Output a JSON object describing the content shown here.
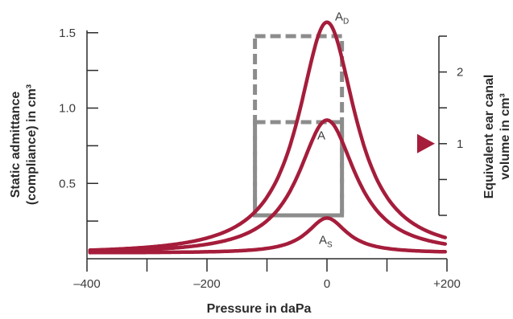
{
  "chart_data": {
    "type": "line",
    "xlabel": "Pressure in daPa",
    "ylabel_lines": [
      "Static admittance",
      "(compliance) in cm³"
    ],
    "y2label_lines": [
      "Equivalent ear canal",
      "volume in cm³"
    ],
    "xlim": [
      -400,
      200
    ],
    "ylim": [
      0,
      1.6
    ],
    "x_ticks": [
      {
        "value": -400,
        "label": "–400"
      },
      {
        "value": -300,
        "label": ""
      },
      {
        "value": -200,
        "label": "–200"
      },
      {
        "value": -100,
        "label": ""
      },
      {
        "value": 0,
        "label": "0"
      },
      {
        "value": 100,
        "label": ""
      },
      {
        "value": 200,
        "label": "+200"
      }
    ],
    "y_ticks": [
      {
        "value": 1.5,
        "label": "1.5"
      },
      {
        "value": 1.25,
        "label": ""
      },
      {
        "value": 1.0,
        "label": "1.0"
      },
      {
        "value": 0.75,
        "label": ""
      },
      {
        "value": 0.5,
        "label": "0.5"
      },
      {
        "value": 0.25,
        "label": ""
      }
    ],
    "y2_ticks": [
      {
        "value": 2.5,
        "label": ""
      },
      {
        "value": 2,
        "label": "2"
      },
      {
        "value": 1.5,
        "label": ""
      },
      {
        "value": 1,
        "label": "1"
      },
      {
        "value": 0.5,
        "label": ""
      },
      {
        "value": 0,
        "label": ""
      }
    ],
    "y2lim": [
      0,
      2.5
    ],
    "baseline": 0.04,
    "curves": [
      {
        "label": "A",
        "sub": "D",
        "peak": 1.57,
        "center": 0,
        "width": 58
      },
      {
        "label": "A",
        "sub": "",
        "peak": 0.92,
        "center": 0,
        "width": 58
      },
      {
        "label": "A",
        "sub": "S",
        "peak": 0.27,
        "center": 0,
        "width": 40
      }
    ],
    "canal_boxes": [
      {
        "x_from": -120,
        "x_to": 25,
        "y2_from": 0,
        "y2_to": 2.5
      },
      {
        "x_from": -120,
        "x_to": 25,
        "y2_from": 0,
        "y2_to": 1.3
      }
    ],
    "canal_marker_value": 1,
    "colors": {
      "curve": "#a51d3b",
      "marker": "#a51d3b",
      "box": "#8c8c8c",
      "axis": "#2b2b2b"
    }
  }
}
